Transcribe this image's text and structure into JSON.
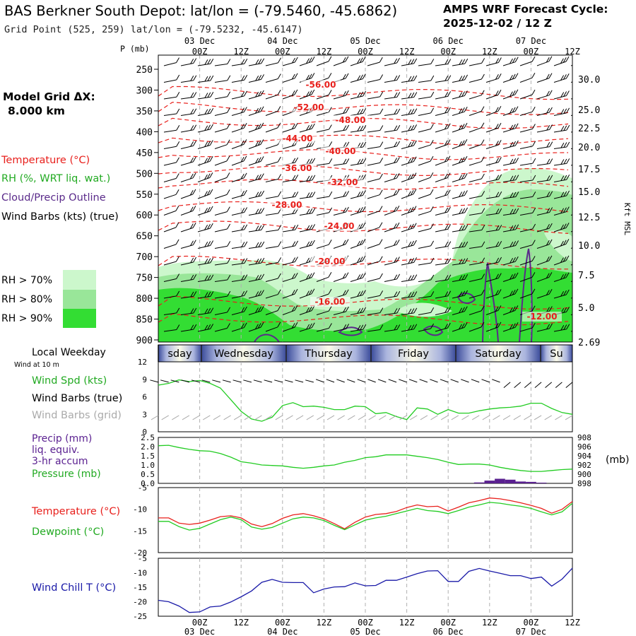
{
  "header": {
    "title": "BAS Berkner South Depot:  lat/lon = (-79.5460, -45.6862)",
    "grid_point": "Grid Point (525, 259) lat/lon = (-79.5232, -45.6147)",
    "cycle_label": "AMPS WRF Forecast Cycle:",
    "cycle_value": "2025-12-02 / 12  Z"
  },
  "left_panel": {
    "model_grid_label": "Model Grid ΔX:",
    "model_grid_value": "8.000 km",
    "legend_temperature": "Temperature (°C)",
    "legend_rh": "RH (%, WRT liq. wat.)",
    "legend_cloud": "Cloud/Precip Outline",
    "legend_wind": "Wind Barbs (kts) (true)",
    "rh70": "RH > 70%",
    "rh80": "RH > 80%",
    "rh90": "RH > 90%",
    "p_unit": "P (mb)",
    "kft_label": "Kft MSL",
    "local_weekday": "Local Weekday",
    "wind_at": "Wind at 10 m",
    "wind_spd": "Wind Spd (kts)",
    "wind_barbs_true": "Wind Barbs (true)",
    "wind_barbs_grid": "Wind Barbs (grid)",
    "precip": "Precip (mm)",
    "liq_equiv": "liq. equiv.",
    "accum": "3-hr accum",
    "pressure": "Pressure (mb)",
    "mb_unit": "(mb)",
    "temperature": "Temperature (°C)",
    "dewpoint": "Dewpoint (°C)",
    "wind_chill": "Wind Chill T (°C)"
  },
  "colors": {
    "temp": "#e8201c",
    "rh70": "#ccf7cc",
    "rh80": "#99e699",
    "rh90": "#33dd33",
    "cloud": "#5a2a8a",
    "dewpoint": "#22cc22",
    "windchill": "#1a1aa8",
    "precip": "#5a2090"
  },
  "chart_data": [
    {
      "type": "area",
      "name": "cross_section",
      "x_tick_top": [
        "00Z",
        "12Z",
        "00Z",
        "12Z",
        "00Z",
        "12Z",
        "00Z",
        "12Z",
        "00Z",
        "12Z"
      ],
      "x_day_labels": [
        "03 Dec",
        "04 Dec",
        "05 Dec",
        "06 Dec",
        "07 Dec"
      ],
      "pressure_ticks": [
        250,
        300,
        350,
        400,
        450,
        500,
        550,
        600,
        650,
        700,
        750,
        800,
        850,
        900
      ],
      "height_ticks": [
        "30.0",
        "25.0",
        "22.5",
        "20.0",
        "17.5",
        "15.0",
        "12.5",
        "10.0",
        "7.5",
        "5.0",
        "2.69"
      ],
      "temperature_contour_labels": [
        "-56.00",
        "-52.00",
        "-48.00",
        "-44.00",
        "-40.00",
        "-36.00",
        "-32.00",
        "-28.00",
        "-24.00",
        "-20.00",
        "-16.00",
        "-12.00"
      ]
    },
    {
      "type": "bar",
      "name": "weekday_bar",
      "categories": [
        "sday",
        "Wednesday",
        "Thursday",
        "Friday",
        "Saturday",
        "Su"
      ]
    },
    {
      "type": "line",
      "name": "wind_speed",
      "y_ticks": [
        "12",
        "9",
        "6",
        "3",
        "0"
      ],
      "ylim": [
        0,
        12
      ],
      "x_hours": [
        0,
        3,
        6,
        9,
        12,
        15,
        18,
        21,
        24,
        27,
        30,
        33,
        36,
        39,
        42,
        45,
        48,
        51,
        54,
        57,
        60,
        63,
        66,
        69,
        72,
        75,
        78,
        81,
        84,
        87,
        90,
        93,
        96,
        99,
        102,
        105,
        108,
        111,
        114,
        117,
        120
      ],
      "series": [
        {
          "name": "Wind Spd (kts)",
          "values": [
            8,
            8.3,
            8.9,
            8.6,
            8.8,
            8.3,
            7.5,
            5.5,
            3.5,
            2.2,
            1.8,
            2.5,
            4.5,
            5,
            4.3,
            4.4,
            4.2,
            3.8,
            3.8,
            4.4,
            4.3,
            3.1,
            3.3,
            2.6,
            2.1,
            4.1,
            3.9,
            3,
            3.8,
            3.2,
            3.2,
            3.6,
            3.9,
            4.1,
            4.2,
            4.4,
            4.9,
            4.9,
            4.0,
            3.3,
            3.0
          ]
        }
      ]
    },
    {
      "type": "line",
      "name": "pressure_precip",
      "y_ticks_left": [
        "2.5",
        "2.0",
        "1.5",
        "1.0",
        "0.5",
        "0.0"
      ],
      "y_ticks_right": [
        "908",
        "906",
        "904",
        "902",
        "900",
        "898"
      ],
      "ylim_left": [
        0,
        2.5
      ],
      "ylim_right": [
        898,
        908
      ],
      "x_hours": [
        0,
        3,
        6,
        9,
        12,
        15,
        18,
        21,
        24,
        27,
        30,
        33,
        36,
        39,
        42,
        45,
        48,
        51,
        54,
        57,
        60,
        63,
        66,
        69,
        72,
        75,
        78,
        81,
        84,
        87,
        90,
        93,
        96,
        99,
        102,
        105,
        108,
        111,
        114,
        117,
        120
      ],
      "series": [
        {
          "name": "Pressure (mb)",
          "values": [
            906.2,
            906.3,
            905.8,
            905.4,
            905.1,
            905.0,
            904.5,
            903.7,
            902.7,
            902.4,
            902.0,
            901.9,
            901.8,
            901.5,
            901.3,
            901.5,
            901.8,
            902.0,
            902.6,
            903.0,
            903.6,
            903.8,
            904.2,
            904.2,
            904.2,
            903.9,
            903.6,
            903.2,
            902.6,
            902.1,
            902.2,
            902.2,
            902.0,
            901.5,
            901.1,
            900.8,
            900.6,
            900.6,
            900.8,
            901.0,
            901.1
          ]
        }
      ],
      "precip_bars": [
        {
          "x": 93,
          "value": 0.05
        },
        {
          "x": 96,
          "value": 0.15
        },
        {
          "x": 99,
          "value": 0.25
        },
        {
          "x": 102,
          "value": 0.2
        },
        {
          "x": 105,
          "value": 0.1
        },
        {
          "x": 108,
          "value": 0.08
        },
        {
          "x": 111,
          "value": 0.04
        }
      ]
    },
    {
      "type": "line",
      "name": "temp_dewpoint",
      "y_ticks": [
        "-5",
        "-10",
        "-15",
        "-20"
      ],
      "ylim": [
        -20,
        -5
      ],
      "x_hours": [
        0,
        3,
        6,
        9,
        12,
        15,
        18,
        21,
        24,
        27,
        30,
        33,
        36,
        39,
        42,
        45,
        48,
        51,
        54,
        57,
        60,
        63,
        66,
        69,
        72,
        75,
        78,
        81,
        84,
        87,
        90,
        93,
        96,
        99,
        102,
        105,
        108,
        111,
        114,
        117,
        120
      ],
      "series": [
        {
          "name": "Temperature (°C)",
          "values": [
            -12.0,
            -12.0,
            -13.2,
            -13.5,
            -13.2,
            -12.5,
            -11.7,
            -11.5,
            -12.0,
            -13.4,
            -14.0,
            -13.3,
            -12.1,
            -11.3,
            -11.0,
            -11.5,
            -12.2,
            -13.3,
            -14.5,
            -13.0,
            -11.8,
            -11.2,
            -11.0,
            -10.5,
            -9.6,
            -9.0,
            -9.4,
            -9.3,
            -10.4,
            -9.5,
            -8.5,
            -8.0,
            -7.4,
            -7.6,
            -8.0,
            -8.5,
            -9.1,
            -9.8,
            -10.9,
            -10.0,
            -8.2
          ]
        },
        {
          "name": "Dewpoint (°C)",
          "values": [
            -12.8,
            -12.8,
            -14.0,
            -14.8,
            -14.4,
            -13.4,
            -12.4,
            -11.8,
            -12.4,
            -14.1,
            -14.6,
            -14.2,
            -13.2,
            -12.2,
            -11.8,
            -12.0,
            -12.6,
            -13.7,
            -14.7,
            -13.6,
            -12.5,
            -12.0,
            -11.6,
            -11.0,
            -10.4,
            -9.8,
            -10.3,
            -10.5,
            -11.0,
            -10.3,
            -9.5,
            -9.0,
            -8.4,
            -8.6,
            -9.0,
            -9.3,
            -9.8,
            -10.6,
            -11.3,
            -10.6,
            -8.6
          ]
        }
      ]
    },
    {
      "type": "line",
      "name": "wind_chill",
      "y_ticks": [
        "-5",
        "-10",
        "-15",
        "-20",
        "-25"
      ],
      "ylim": [
        -25,
        -5
      ],
      "x_hours": [
        0,
        3,
        6,
        9,
        12,
        15,
        18,
        21,
        24,
        27,
        30,
        33,
        36,
        39,
        42,
        45,
        48,
        51,
        54,
        57,
        60,
        63,
        66,
        69,
        72,
        75,
        78,
        81,
        84,
        87,
        90,
        93,
        96,
        99,
        102,
        105,
        108,
        111,
        114,
        117,
        120
      ],
      "series": [
        {
          "name": "Wind Chill T (°C)",
          "values": [
            -19.5,
            -20.0,
            -21.5,
            -23.7,
            -23.5,
            -21.8,
            -21.5,
            -20.1,
            -18.3,
            -16.3,
            -13.3,
            -12.3,
            -13.3,
            -13.4,
            -13.4,
            -16.9,
            -15.6,
            -14.9,
            -14.8,
            -13.5,
            -14.5,
            -14.4,
            -12.6,
            -12.6,
            -11.5,
            -10.3,
            -9.4,
            -9.3,
            -13.0,
            -13.0,
            -9.5,
            -8.5,
            -9.4,
            -10.2,
            -11.0,
            -11.0,
            -12.0,
            -11.5,
            -14.6,
            -12.2,
            -8.4
          ]
        }
      ]
    }
  ]
}
